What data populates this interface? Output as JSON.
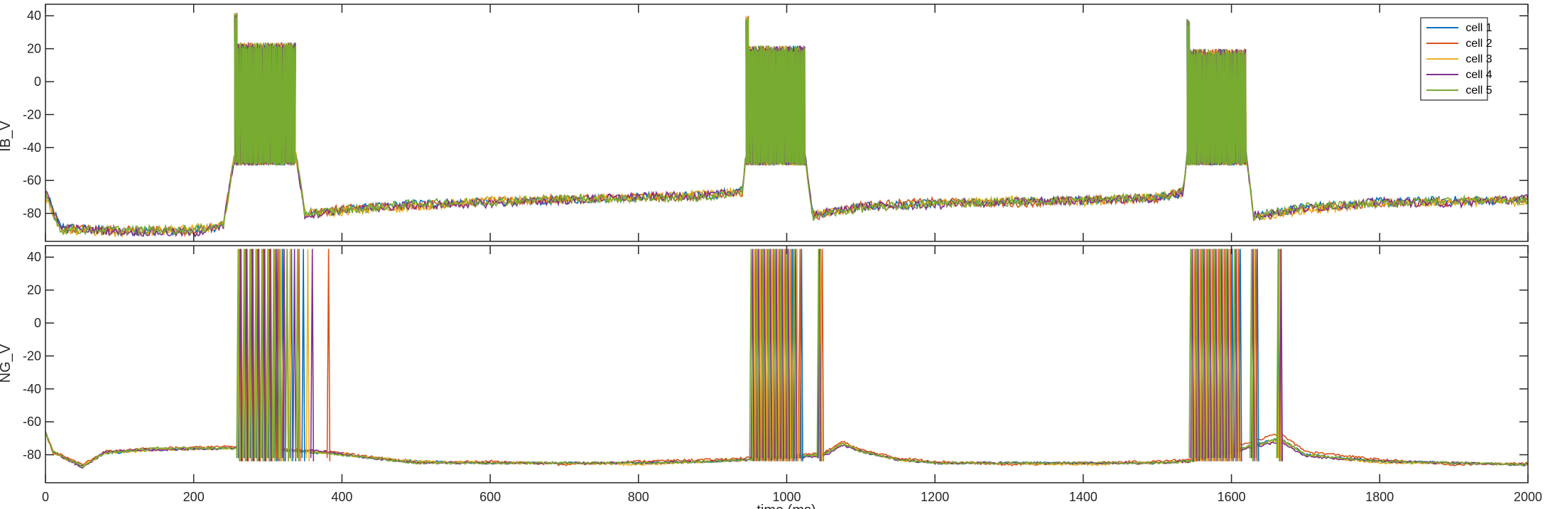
{
  "chart_data": [
    {
      "type": "line",
      "ylabel": "IB_V",
      "xlim": [
        0,
        2000
      ],
      "ylim": [
        -97,
        47
      ],
      "yticks": [
        -80,
        -60,
        -40,
        -20,
        0,
        20,
        40
      ],
      "xticks": [
        0,
        200,
        400,
        600,
        800,
        1000,
        1200,
        1400,
        1600,
        1800,
        2000
      ],
      "legend": {
        "position": "top-right",
        "entries": [
          "cell 1",
          "cell 2",
          "cell 3",
          "cell 4",
          "cell 5"
        ]
      },
      "bursts": [
        {
          "start": 255,
          "end": 338,
          "peak_y": 30,
          "trough_y": -50
        },
        {
          "start": 945,
          "end": 1025,
          "peak_y": 28,
          "trough_y": -50
        },
        {
          "start": 1540,
          "end": 1620,
          "peak_y": 26,
          "trough_y": -50
        }
      ],
      "series": [
        {
          "name": "cell 1",
          "color": "#0072BD",
          "x": [
            0,
            20,
            100,
            200,
            240,
            255,
            338,
            350,
            400,
            500,
            600,
            700,
            800,
            900,
            940,
            945,
            1025,
            1035,
            1100,
            1200,
            1300,
            1400,
            1500,
            1535,
            1540,
            1620,
            1630,
            1700,
            1800,
            1900,
            2000
          ],
          "y": [
            -67,
            -88,
            -91,
            -90,
            -88,
            -45,
            -45,
            -80,
            -78,
            -74,
            -73,
            -72,
            -70,
            -69,
            -66,
            -45,
            -45,
            -81,
            -76,
            -74,
            -73,
            -72,
            -70,
            -68,
            -45,
            -45,
            -82,
            -76,
            -73,
            -72,
            -72
          ]
        },
        {
          "name": "cell 2",
          "color": "#D95319",
          "x": [
            0,
            20,
            100,
            200,
            240,
            255,
            338,
            350,
            400,
            500,
            600,
            700,
            800,
            900,
            940,
            945,
            1025,
            1035,
            1100,
            1200,
            1300,
            1400,
            1500,
            1535,
            1540,
            1620,
            1630,
            1700,
            1800,
            1900,
            2000
          ],
          "y": [
            -68,
            -89,
            -90,
            -91,
            -87,
            -45,
            -45,
            -81,
            -77,
            -75,
            -73,
            -71,
            -70,
            -70,
            -67,
            -45,
            -45,
            -82,
            -75,
            -73,
            -74,
            -72,
            -71,
            -66,
            -45,
            -45,
            -83,
            -77,
            -74,
            -73,
            -71
          ]
        },
        {
          "name": "cell 3",
          "color": "#EDB120",
          "x": [
            0,
            20,
            100,
            200,
            240,
            255,
            338,
            350,
            400,
            500,
            600,
            700,
            800,
            900,
            940,
            945,
            1025,
            1035,
            1100,
            1200,
            1300,
            1400,
            1500,
            1535,
            1540,
            1620,
            1630,
            1700,
            1800,
            1900,
            2000
          ],
          "y": [
            -69,
            -90,
            -92,
            -89,
            -88,
            -45,
            -45,
            -80,
            -79,
            -76,
            -72,
            -72,
            -71,
            -68,
            -67,
            -45,
            -45,
            -80,
            -77,
            -74,
            -72,
            -73,
            -70,
            -68,
            -45,
            -45,
            -82,
            -78,
            -74,
            -73,
            -73
          ]
        },
        {
          "name": "cell 4",
          "color": "#7E2F8E",
          "x": [
            0,
            20,
            100,
            200,
            240,
            255,
            338,
            350,
            400,
            500,
            600,
            700,
            800,
            900,
            940,
            945,
            1025,
            1035,
            1100,
            1200,
            1300,
            1400,
            1500,
            1535,
            1540,
            1620,
            1630,
            1700,
            1800,
            1900,
            2000
          ],
          "y": [
            -67,
            -89,
            -91,
            -92,
            -88,
            -45,
            -45,
            -81,
            -78,
            -75,
            -74,
            -72,
            -70,
            -69,
            -66,
            -45,
            -45,
            -81,
            -76,
            -75,
            -73,
            -72,
            -71,
            -67,
            -45,
            -45,
            -81,
            -77,
            -73,
            -74,
            -71
          ]
        },
        {
          "name": "cell 5",
          "color": "#77AC30",
          "x": [
            0,
            20,
            100,
            200,
            240,
            255,
            338,
            350,
            400,
            500,
            600,
            700,
            800,
            900,
            940,
            945,
            1025,
            1035,
            1100,
            1200,
            1300,
            1400,
            1500,
            1535,
            1540,
            1620,
            1630,
            1700,
            1800,
            1900,
            2000
          ],
          "y": [
            -68,
            -90,
            -90,
            -90,
            -87,
            -45,
            -45,
            -80,
            -78,
            -74,
            -73,
            -71,
            -71,
            -70,
            -66,
            -45,
            -45,
            -82,
            -77,
            -74,
            -73,
            -72,
            -70,
            -67,
            -45,
            -45,
            -82,
            -76,
            -74,
            -72,
            -72
          ]
        }
      ]
    },
    {
      "type": "line",
      "ylabel": "NG_V",
      "xlabel": "time (ms)",
      "xlim": [
        0,
        2000
      ],
      "ylim": [
        -97,
        47
      ],
      "yticks": [
        -80,
        -60,
        -40,
        -20,
        0,
        20,
        40
      ],
      "xticks": [
        0,
        200,
        400,
        600,
        800,
        1000,
        1200,
        1400,
        1600,
        1800,
        2000
      ],
      "spikes": [
        {
          "color": "#0072BD",
          "times": [
            262,
            270,
            278,
            286,
            294,
            302,
            310,
            320,
            332,
            348,
            960,
            968,
            976,
            984,
            992,
            1000,
            1008,
            1020,
            1045,
            1553,
            1561,
            1569,
            1577,
            1585,
            1593,
            1601,
            1612,
            1635,
            1664
          ]
        },
        {
          "color": "#D95319",
          "times": [
            264,
            272,
            280,
            288,
            296,
            304,
            314,
            326,
            342,
            382,
            958,
            966,
            974,
            982,
            990,
            998,
            1006,
            1018,
            1048,
            1551,
            1559,
            1567,
            1575,
            1583,
            1591,
            1599,
            1610,
            1633,
            1666
          ]
        },
        {
          "color": "#EDB120",
          "times": [
            261,
            269,
            277,
            285,
            293,
            301,
            309,
            318,
            330,
            354,
            956,
            964,
            972,
            980,
            988,
            996,
            1004,
            1014,
            1046,
            1549,
            1557,
            1565,
            1573,
            1581,
            1589,
            1597,
            1608,
            1631,
            1665
          ]
        },
        {
          "color": "#7E2F8E",
          "times": [
            263,
            271,
            279,
            287,
            295,
            303,
            312,
            322,
            336,
            360,
            954,
            962,
            970,
            978,
            986,
            994,
            1002,
            1012,
            1044,
            1547,
            1555,
            1563,
            1571,
            1579,
            1587,
            1595,
            1606,
            1629,
            1667
          ]
        },
        {
          "color": "#77AC30",
          "times": [
            260,
            268,
            276,
            284,
            292,
            300,
            308,
            316,
            326,
            340,
            952,
            960,
            968,
            976,
            984,
            992,
            1000,
            1010,
            1043,
            1545,
            1553,
            1561,
            1569,
            1577,
            1585,
            1593,
            1604,
            1627,
            1663
          ]
        }
      ],
      "series": [
        {
          "name": "cell 1",
          "color": "#0072BD",
          "x": [
            0,
            10,
            50,
            80,
            150,
            255,
            380,
            420,
            500,
            600,
            700,
            800,
            900,
            945,
            1050,
            1075,
            1100,
            1150,
            1200,
            1300,
            1400,
            1500,
            1545,
            1665,
            1700,
            1800,
            1900,
            2000
          ],
          "y": [
            -66,
            -78,
            -87,
            -79,
            -77,
            -76,
            -79,
            -81,
            -84,
            -85,
            -85,
            -85,
            -84,
            -83,
            -80,
            -73,
            -78,
            -83,
            -85,
            -85,
            -85,
            -85,
            -84,
            -70,
            -80,
            -84,
            -85,
            -86
          ]
        },
        {
          "name": "cell 2",
          "color": "#D95319",
          "x": [
            0,
            10,
            50,
            80,
            150,
            255,
            380,
            420,
            500,
            600,
            700,
            800,
            900,
            945,
            1050,
            1075,
            1100,
            1150,
            1200,
            1300,
            1400,
            1500,
            1545,
            1665,
            1700,
            1800,
            1900,
            2000
          ],
          "y": [
            -66,
            -78,
            -86,
            -78,
            -76,
            -75,
            -78,
            -80,
            -85,
            -84,
            -86,
            -84,
            -83,
            -82,
            -79,
            -72,
            -77,
            -82,
            -84,
            -86,
            -85,
            -84,
            -83,
            -67,
            -78,
            -83,
            -86,
            -85
          ]
        },
        {
          "name": "cell 3",
          "color": "#EDB120",
          "x": [
            0,
            10,
            50,
            80,
            150,
            255,
            380,
            420,
            500,
            600,
            700,
            800,
            900,
            945,
            1050,
            1075,
            1100,
            1150,
            1200,
            1300,
            1400,
            1500,
            1545,
            1665,
            1700,
            1800,
            1900,
            2000
          ],
          "y": [
            -67,
            -79,
            -87,
            -79,
            -77,
            -76,
            -79,
            -81,
            -84,
            -85,
            -85,
            -86,
            -84,
            -83,
            -80,
            -73,
            -78,
            -83,
            -85,
            -85,
            -86,
            -85,
            -84,
            -71,
            -80,
            -85,
            -85,
            -86
          ]
        },
        {
          "name": "cell 4",
          "color": "#7E2F8E",
          "x": [
            0,
            10,
            50,
            80,
            150,
            255,
            380,
            420,
            500,
            600,
            700,
            800,
            900,
            945,
            1050,
            1075,
            1100,
            1150,
            1200,
            1300,
            1400,
            1500,
            1545,
            1665,
            1700,
            1800,
            1900,
            2000
          ],
          "y": [
            -66,
            -78,
            -88,
            -78,
            -77,
            -76,
            -78,
            -81,
            -85,
            -85,
            -85,
            -85,
            -84,
            -83,
            -81,
            -74,
            -78,
            -83,
            -85,
            -85,
            -85,
            -85,
            -84,
            -72,
            -81,
            -84,
            -85,
            -86
          ]
        },
        {
          "name": "cell 5",
          "color": "#77AC30",
          "x": [
            0,
            10,
            50,
            80,
            150,
            255,
            380,
            420,
            500,
            600,
            700,
            800,
            900,
            945,
            1050,
            1075,
            1100,
            1150,
            1200,
            1300,
            1400,
            1500,
            1545,
            1665,
            1700,
            1800,
            1900,
            2000
          ],
          "y": [
            -66,
            -78,
            -87,
            -79,
            -76,
            -76,
            -79,
            -81,
            -85,
            -85,
            -85,
            -85,
            -84,
            -83,
            -80,
            -73,
            -78,
            -83,
            -85,
            -85,
            -85,
            -85,
            -84,
            -70,
            -80,
            -84,
            -85,
            -86
          ]
        }
      ]
    }
  ]
}
